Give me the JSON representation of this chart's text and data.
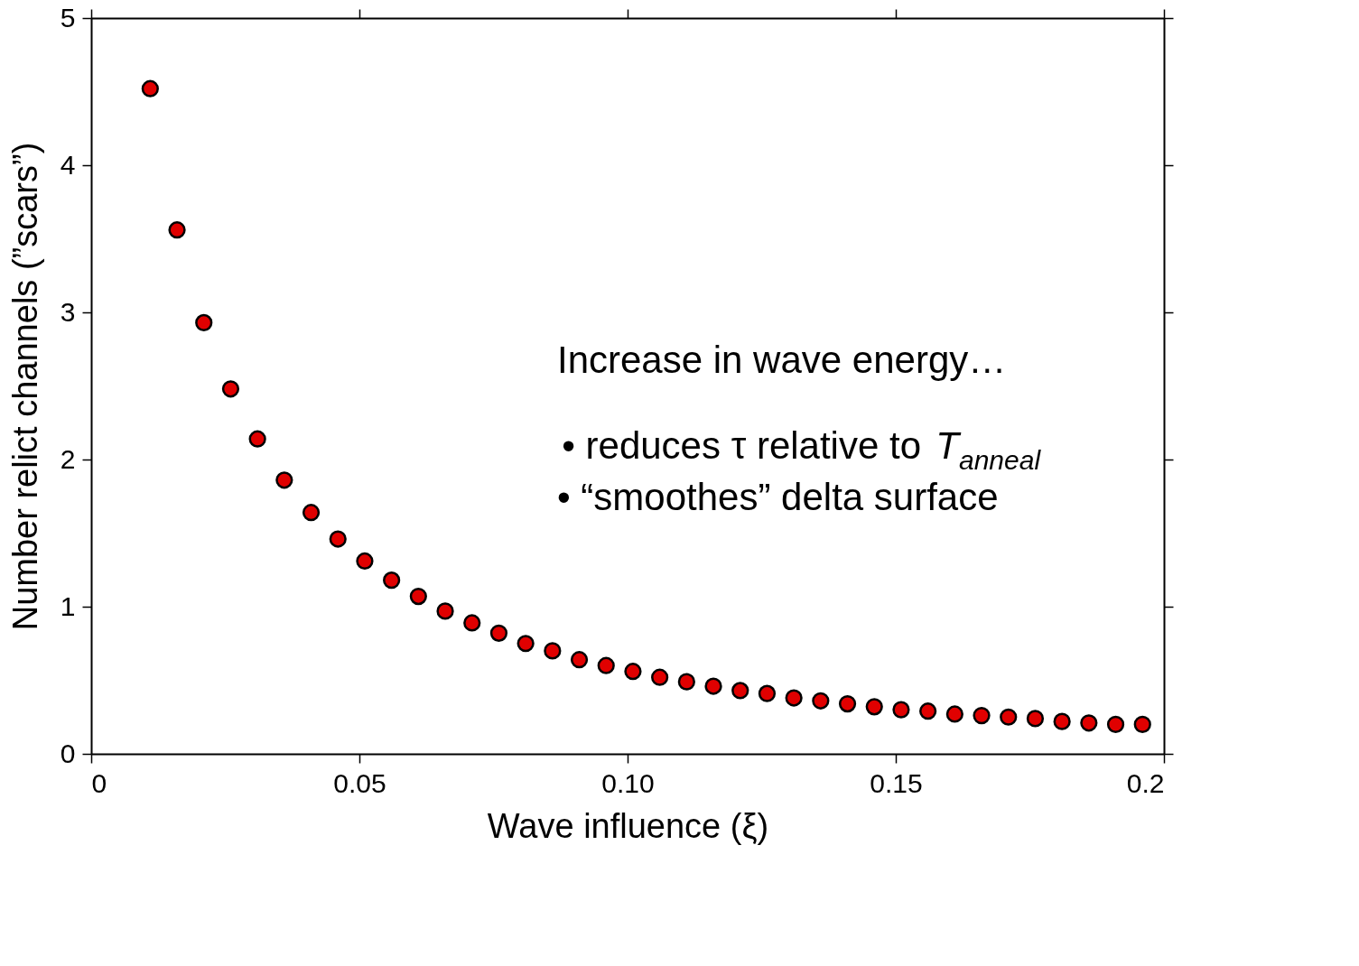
{
  "chart_data": {
    "type": "scatter",
    "xlabel": "Wave influence (ξ)",
    "ylabel": "Number relict channels (”scars”)",
    "x": [
      0.011,
      0.016,
      0.021,
      0.026,
      0.031,
      0.036,
      0.041,
      0.046,
      0.051,
      0.056,
      0.061,
      0.066,
      0.071,
      0.076,
      0.081,
      0.086,
      0.091,
      0.096,
      0.101,
      0.106,
      0.111,
      0.116,
      0.121,
      0.126,
      0.131,
      0.136,
      0.141,
      0.146,
      0.151,
      0.156,
      0.161,
      0.166,
      0.171,
      0.176,
      0.181,
      0.186,
      0.191,
      0.196
    ],
    "series": [
      {
        "color": "#e00000",
        "values": [
          4.52,
          3.56,
          2.93,
          2.48,
          2.14,
          1.86,
          1.64,
          1.46,
          1.31,
          1.18,
          1.07,
          0.97,
          0.89,
          0.82,
          0.75,
          0.7,
          0.64,
          0.6,
          0.56,
          0.52,
          0.49,
          0.46,
          0.43,
          0.41,
          0.38,
          0.36,
          0.34,
          0.32,
          0.3,
          0.29,
          0.27,
          0.26,
          0.25,
          0.24,
          0.22,
          0.21,
          0.2,
          0.2
        ]
      }
    ],
    "xlim": [
      0,
      0.2
    ],
    "ylim": [
      0,
      5
    ],
    "xticks": [
      0,
      0.05,
      {
        "value": 0.1,
        "label": "0.10"
      },
      0.15,
      0.2
    ],
    "yticks": [
      0,
      1,
      2,
      3,
      4,
      5
    ],
    "grid": false,
    "marker": "circle",
    "annotations": [
      "Increase in wave energy…",
      "• reduces τ relative to T$_{anneal}$",
      "• “smoothes” delta surface"
    ]
  }
}
